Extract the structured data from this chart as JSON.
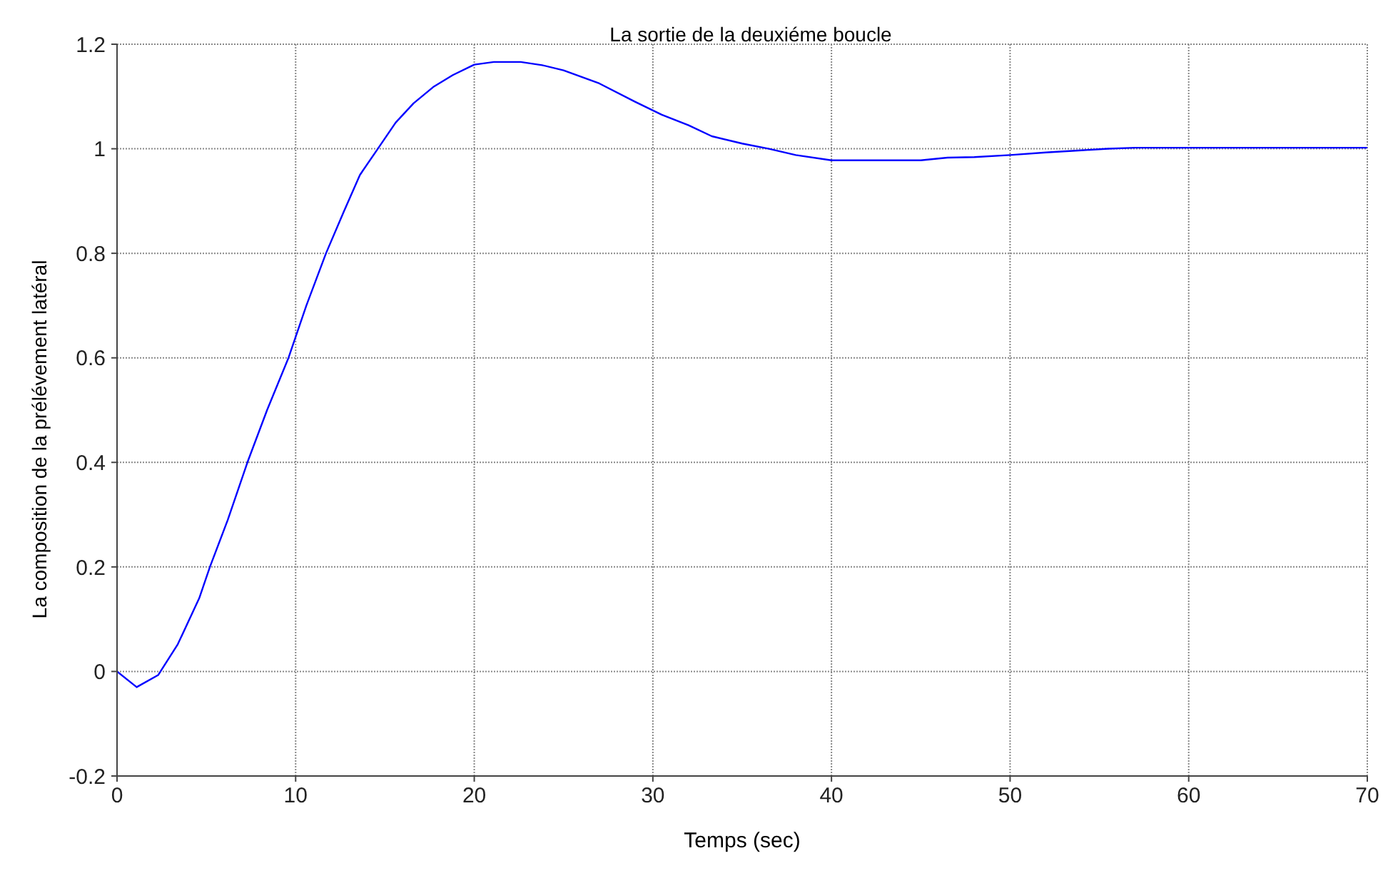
{
  "chart_data": {
    "type": "line",
    "title": "La sortie de la deuxiéme boucle",
    "xlabel": "Temps (sec)",
    "ylabel": "La composition de la prélévement latéral",
    "x": [
      0,
      1.1,
      2.3,
      3.4,
      4.6,
      5.2,
      6.2,
      7.3,
      8.4,
      9.6,
      10.6,
      11.7,
      12.7,
      13.6,
      14.6,
      15.6,
      16.6,
      17.7,
      18.8,
      20,
      21.1,
      22.6,
      23.8,
      25,
      27,
      29,
      30.5,
      32,
      33.3,
      35,
      36.5,
      38,
      40,
      42,
      45,
      46.5,
      48,
      50,
      52,
      54,
      55.5,
      57,
      60,
      63,
      66,
      70
    ],
    "series": [
      {
        "color": "#0000ff",
        "values": [
          0,
          -0.03,
          -0.007,
          0.052,
          0.14,
          0.2,
          0.29,
          0.4,
          0.5,
          0.6,
          0.7,
          0.8,
          0.88,
          0.95,
          1.0,
          1.05,
          1.087,
          1.118,
          1.141,
          1.161,
          1.166,
          1.166,
          1.16,
          1.15,
          1.125,
          1.09,
          1.065,
          1.045,
          1.024,
          1.01,
          1.0,
          0.988,
          0.978,
          0.978,
          0.978,
          0.983,
          0.984,
          0.988,
          0.993,
          0.997,
          1.0,
          1.002,
          1.002,
          1.002,
          1.002,
          1.002
        ]
      }
    ],
    "xlim": [
      0,
      70
    ],
    "xticks": [
      0,
      10,
      20,
      30,
      40,
      50,
      60,
      70
    ],
    "ylim": [
      -0.2,
      1.2
    ],
    "yticks": [
      -0.2,
      0,
      0.2,
      0.4,
      0.6,
      0.8,
      1,
      1.2
    ],
    "grid": true,
    "legend": false,
    "marker": "none",
    "line_style": "solid"
  }
}
